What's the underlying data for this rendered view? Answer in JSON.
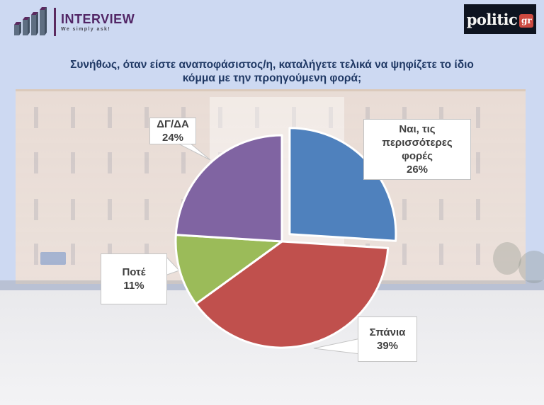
{
  "header": {
    "interview": {
      "name": "INTERVIEW",
      "tagline": "We simply ask!"
    },
    "politic": {
      "text": "politic",
      "badge": "gr"
    }
  },
  "palette": {
    "sky_background": "#cdd9f2",
    "title_text": "#1f3864",
    "interview_purple": "#5b2a60",
    "politic_background": "#0e1420",
    "politic_red": "#cc4a40",
    "callout_border": "#c4c4c4",
    "callout_text": "#404040"
  },
  "chart_data": {
    "type": "pie",
    "title": "Συνήθως, όταν είστε αναποφάσιστος/η, καταλήγετε τελικά να ψηφίζετε το ίδιο κόμμα με την προηγούμενη φορά;",
    "unit": "percent",
    "start_angle_deg": 0,
    "direction": "clockwise",
    "legend": "none",
    "labels": "callout-boxes",
    "slices": [
      {
        "label": "Ναι, τις περισσότερες φορές",
        "value": 26,
        "percent_label": "26%",
        "color": "#4F81BD",
        "exploded": true
      },
      {
        "label": "Σπάνια",
        "value": 39,
        "percent_label": "39%",
        "color": "#C0504D",
        "exploded": false
      },
      {
        "label": "Ποτέ",
        "value": 11,
        "percent_label": "11%",
        "color": "#9BBB59",
        "exploded": false
      },
      {
        "label": "ΔΓ/ΔΑ",
        "value": 24,
        "percent_label": "24%",
        "color": "#8064A2",
        "exploded": false
      }
    ]
  }
}
